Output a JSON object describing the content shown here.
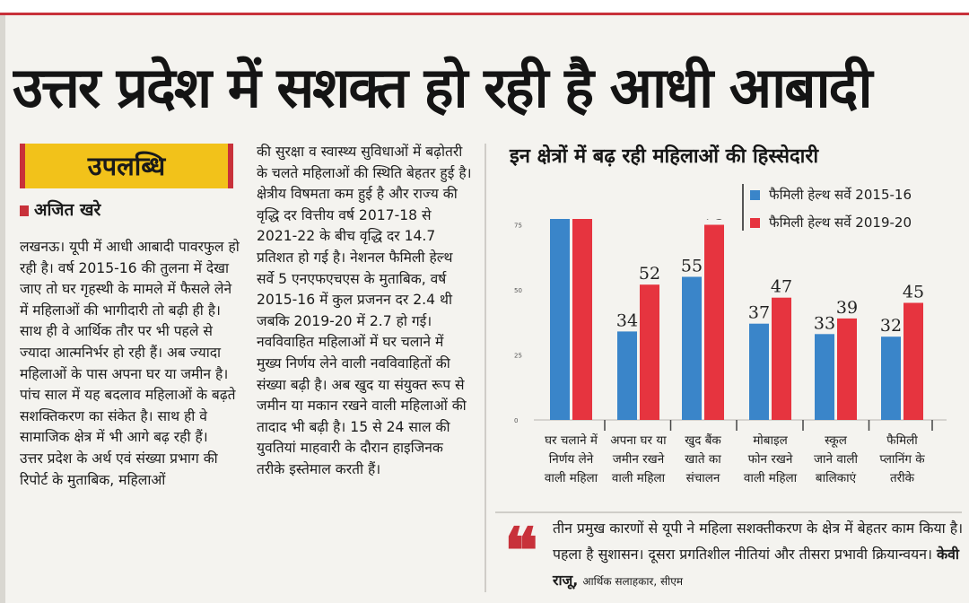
{
  "headline": "उत्तर प्रदेश में सशक्त हो रही है आधी आबादी",
  "kicker": "उपलब्धि",
  "byline": "अजित खरे",
  "column1": [
    "लखनऊ। यूपी में आधी आबादी पावरफुल हो रही है। वर्ष 2015-16 की तुलना में देखा जाए तो घर गृहस्थी के मामले में फैसले लेने में महिलाओं की भागीदारी तो बढ़ी ही है। साथ ही वे आर्थिक तौर पर भी पहले से ज्यादा आत्मनिर्भर हो रही हैं। अब ज्यादा महिलाओं के पास अपना घर या जमीन है। पांच साल में यह बदलाव महिलाओं के बढ़ते सशक्तिकरण का संकेत है। साथ ही वे सामाजिक क्षेत्र में भी आगे बढ़ रही हैं।",
    "उत्तर प्रदेश के अर्थ एवं संख्या प्रभाग की रिपोर्ट के मुताबिक, महिलाओं"
  ],
  "column2": [
    "की सुरक्षा व स्वास्थ्य सुविधाओं में बढ़ोतरी के चलते महिलाओं की स्थिति बेहतर हुई है। क्षेत्रीय विषमता कम हुई है और राज्य की वृद्धि दर वित्तीय वर्ष 2017-18 से 2021-22 के बीच वृद्धि दर 14.7 प्रतिशत हो गई है। नेशनल फैमिली हेल्थ सर्वे 5 एनएफएचएस के मुताबिक, वर्ष 2015-16 में कुल प्रजनन दर 2.4 थी जबकि 2019-20 में 2.7 हो गई।",
    "नवविवाहित महिलाओं में घर चलाने में मुख्य निर्णय लेने वाली नवविवाहितों की संख्या बढ़ी है। अब खुद या संयुक्त रूप से जमीन या मकान रखने वाली महिलाओं की तादाद भी बढ़ी है। 15 से 24 साल की युवतियां माहवारी के दौरान हाइजिनक तरीके इस्तेमाल करती हैं।"
  ],
  "quote": {
    "text": "तीन प्रमुख कारणों से यूपी ने महिला सशक्तीकरण के क्षेत्र में बेहतर काम किया है। पहला है सुशासन। दूसरा प्रगतिशील नीतियां और तीसरा प्रभावी क्रियान्वयन।",
    "name": "केवी राजू,",
    "role": "आर्थिक सलाहकार, सीएम"
  },
  "chart_data": {
    "type": "bar",
    "title": "इन क्षेत्रों में बढ़ रही महिलाओं की हिस्सेदारी",
    "categories": [
      [
        "घर चलाने में",
        "निर्णय लेने",
        "वाली महिला"
      ],
      [
        "अपना घर या",
        "जमीन रखने",
        "वाली महिला"
      ],
      [
        "खुद बैंक",
        "खाते का",
        "संचालन"
      ],
      [
        "मोबाइल",
        "फोन रखने",
        "वाली महिला"
      ],
      [
        "स्कूल",
        "जाने वाली",
        "बालिकाएं"
      ],
      [
        "फैमिली",
        "प्लानिंग के",
        "तरीके"
      ]
    ],
    "series": [
      {
        "name": "फैमिली हेल्थ सर्वे 2015-16",
        "color": "#3a85c9",
        "values": [
          82,
          34,
          55,
          37,
          33,
          32
        ]
      },
      {
        "name": "फैमिली हेल्थ सर्वे 2019-20",
        "color": "#e6343f",
        "values": [
          88,
          52,
          75,
          47,
          39,
          45
        ]
      }
    ],
    "yticks": [
      0,
      25,
      50,
      75
    ],
    "ylim": [
      0,
      100
    ],
    "grid": false,
    "legend": "top-right"
  }
}
